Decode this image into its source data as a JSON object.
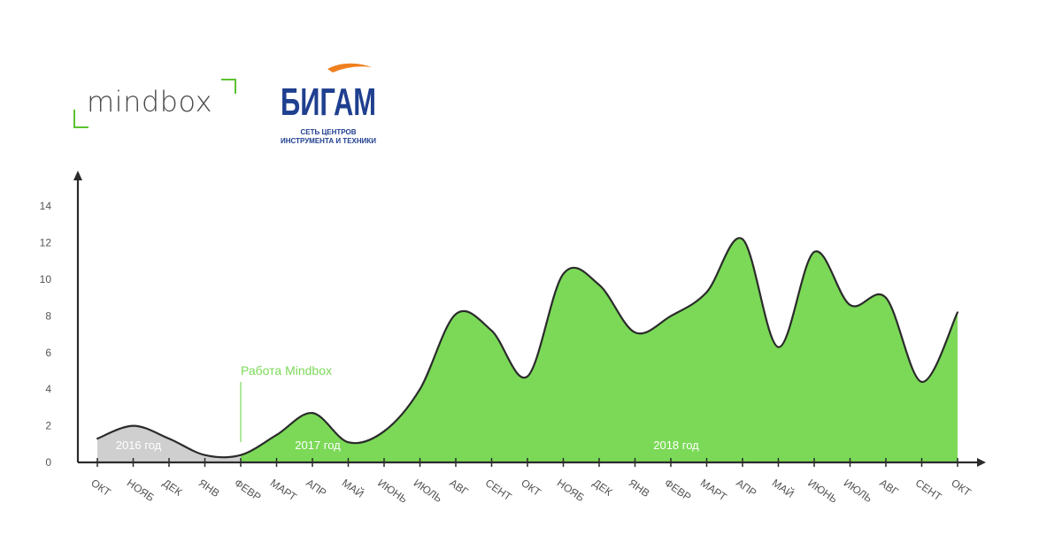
{
  "logos": {
    "mindbox": "mindbox",
    "bigam_name": "БИГАМ",
    "bigam_sub1": "СЕТЬ ЦЕНТРОВ",
    "bigam_sub2": "ИНСТРУМЕНТА И ТЕХНИКИ"
  },
  "colors": {
    "gray_fill": "#cfcfcf",
    "green_fill": "#7bd957",
    "line": "#2b2b2b",
    "annotation": "#7bd957",
    "mindbox_bracket": "#5cc22f",
    "bigam_blue": "#1f3f8f",
    "bigam_orange": "#f07f1e"
  },
  "chart_data": {
    "type": "area",
    "categories": [
      "ОКТ",
      "НОЯБ",
      "ДЕК",
      "ЯНВ",
      "ФЕВР",
      "МАРТ",
      "АПР",
      "МАЙ",
      "ИЮНЬ",
      "ИЮЛЬ",
      "АВГ",
      "СЕНТ",
      "ОКТ",
      "НОЯБ",
      "ДЕК",
      "ЯНВ",
      "ФЕВР",
      "МАРТ",
      "АПР",
      "МАЙ",
      "ИЮНЬ",
      "ИЮЛЬ",
      "АВГ",
      "СЕНТ",
      "ОКТ"
    ],
    "values": [
      1.3,
      2.0,
      1.3,
      0.4,
      0.4,
      1.5,
      2.7,
      1.1,
      1.7,
      4.0,
      8.1,
      7.2,
      4.7,
      10.3,
      9.7,
      7.1,
      8.0,
      9.3,
      12.2,
      6.3,
      11.5,
      8.6,
      9.0,
      4.4,
      8.2
    ],
    "ylim": [
      0,
      15
    ],
    "yticks": [
      "0",
      "2",
      "4",
      "6",
      "8",
      "10",
      "12",
      "14"
    ],
    "segments": [
      {
        "from": 0,
        "to": 4,
        "color": "gray"
      },
      {
        "from": 4,
        "to": 24,
        "color": "green"
      }
    ],
    "region_labels": [
      {
        "text": "2016 год",
        "at": 1.0
      },
      {
        "text": "2017 год",
        "at": 6.0
      },
      {
        "text": "2018 год",
        "at": 16.0
      }
    ],
    "annotation": {
      "text": "Работа Mindbox",
      "at": 4
    }
  }
}
